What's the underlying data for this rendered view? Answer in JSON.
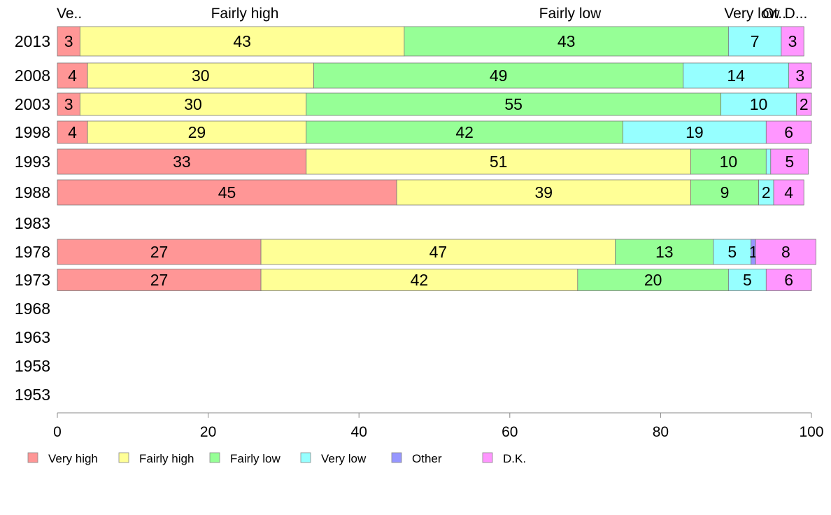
{
  "chart_data": {
    "type": "bar",
    "orientation": "horizontal",
    "stacked": true,
    "years": [
      "2013",
      "2008",
      "2003",
      "1998",
      "1993",
      "1988",
      "1983",
      "1978",
      "1973",
      "1968",
      "1963",
      "1958",
      "1953"
    ],
    "xlim": [
      0,
      100
    ],
    "xticks": [
      "0",
      "20",
      "40",
      "60",
      "80",
      "100"
    ],
    "top_labels": [
      "Ve..",
      "Fairly high",
      "Fairly low",
      "Very low",
      "Ot..",
      "D..."
    ],
    "legend_position": "bottom",
    "series": [
      {
        "name": "Very high",
        "color": "#ff9696",
        "values": [
          3,
          4,
          3,
          4,
          33,
          45,
          null,
          27,
          27,
          null,
          null,
          null,
          null
        ]
      },
      {
        "name": "Fairly high",
        "color": "#ffff96",
        "values": [
          43,
          30,
          30,
          29,
          51,
          39,
          null,
          47,
          42,
          null,
          null,
          null,
          null
        ]
      },
      {
        "name": "Fairly low",
        "color": "#96ff96",
        "values": [
          43,
          49,
          55,
          42,
          10,
          9,
          null,
          13,
          20,
          null,
          null,
          null,
          null
        ]
      },
      {
        "name": "Very low",
        "color": "#96ffff",
        "values": [
          7,
          14,
          10,
          19,
          0.6,
          2,
          null,
          5,
          5,
          null,
          null,
          null,
          null
        ]
      },
      {
        "name": "Other",
        "color": "#9696ff",
        "values": [
          0,
          0,
          0,
          0,
          0,
          0,
          null,
          0.6,
          0,
          null,
          null,
          null,
          null
        ]
      },
      {
        "name": "D.K.",
        "color": "#ff96ff",
        "values": [
          3,
          3,
          2,
          6,
          5,
          4,
          null,
          8,
          6,
          null,
          null,
          null,
          null
        ]
      }
    ],
    "value_labels": [
      [
        "3",
        "43",
        "43",
        "7",
        "",
        "3"
      ],
      [
        "4",
        "30",
        "49",
        "14",
        "",
        "3"
      ],
      [
        "3",
        "30",
        "55",
        "10",
        "",
        "2"
      ],
      [
        "4",
        "29",
        "42",
        "19",
        "",
        "6"
      ],
      [
        "33",
        "51",
        "10",
        "",
        "",
        "5"
      ],
      [
        "45",
        "39",
        "9",
        "2",
        "",
        "4"
      ],
      [
        "",
        "",
        "",
        "",
        "",
        ""
      ],
      [
        "27",
        "47",
        "13",
        "5",
        "1",
        "8"
      ],
      [
        "27",
        "42",
        "20",
        "5",
        "",
        "6"
      ],
      [
        "",
        "",
        "",
        "",
        "",
        ""
      ],
      [
        "",
        "",
        "",
        "",
        "",
        ""
      ],
      [
        "",
        "",
        "",
        "",
        "",
        ""
      ],
      [
        "",
        "",
        "",
        "",
        "",
        ""
      ]
    ]
  }
}
